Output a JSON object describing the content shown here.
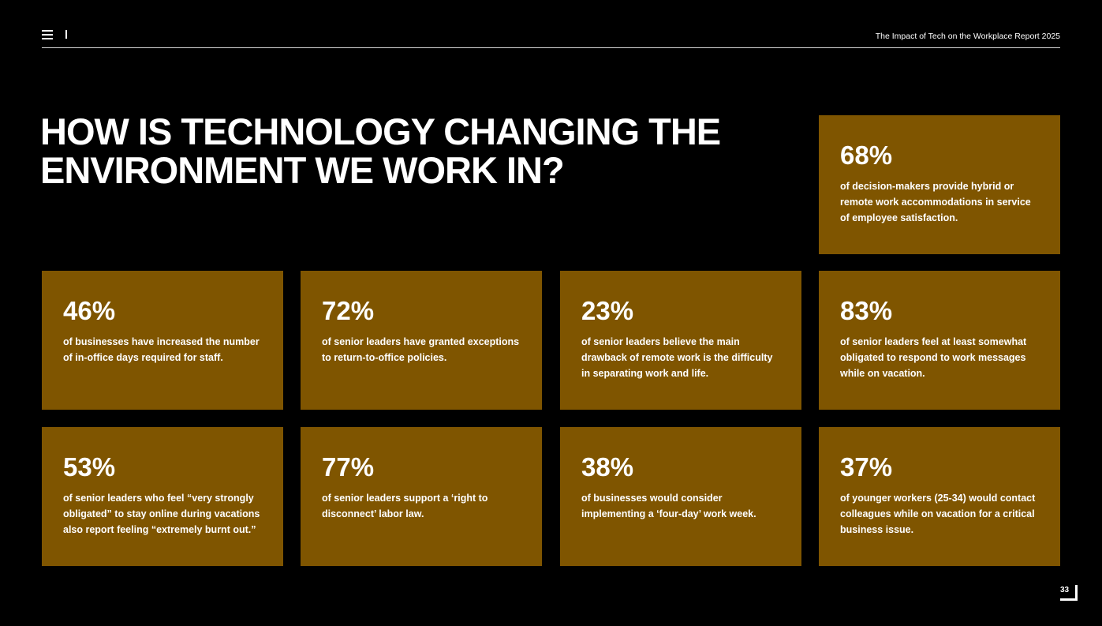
{
  "header": {
    "report_title": "The Impact of Tech on the Workplace Report 2025"
  },
  "main": {
    "heading": "HOW IS TECHNOLOGY CHANGING THE ENVIRONMENT WE WORK IN?"
  },
  "stats": [
    {
      "value": "68%",
      "text": "of decision-makers provide hybrid or remote work accommodations in service of employee satisfaction."
    },
    {
      "value": "46%",
      "text": "of businesses have increased the number of in-office days required for staff."
    },
    {
      "value": "72%",
      "text": "of senior leaders have granted exceptions to return-to-office policies."
    },
    {
      "value": "23%",
      "text": "of senior leaders believe the main drawback of remote work is the difficulty in separating work and life."
    },
    {
      "value": "83%",
      "text": "of senior leaders feel at least somewhat obligated to respond to work messages while on vacation."
    },
    {
      "value": "53%",
      "text": "of senior leaders who feel “very strongly obligated” to stay online during vacations also report feeling “extremely burnt out.”"
    },
    {
      "value": "77%",
      "text": "of senior leaders support a ‘right to disconnect’ labor law."
    },
    {
      "value": "38%",
      "text": "of businesses would consider implementing a ‘four-day’ work week."
    },
    {
      "value": "37%",
      "text": "of younger workers (25-34) would contact colleagues while on vacation for a critical business issue."
    }
  ],
  "footer": {
    "page_number": "33"
  },
  "colors": {
    "background": "#000000",
    "card": "#7f5500",
    "text": "#ffffff"
  }
}
